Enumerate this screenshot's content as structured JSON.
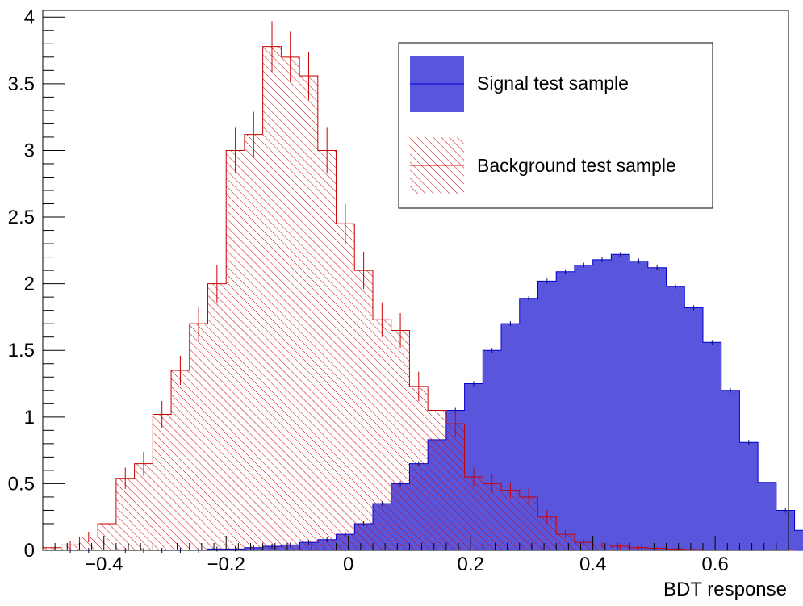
{
  "chart_data": {
    "type": "histogram",
    "title": "",
    "xlabel": "BDT response",
    "ylabel": "",
    "xlim": [
      -0.5,
      0.72
    ],
    "ylim": [
      0,
      4.05
    ],
    "bin_width": 0.03,
    "x_ticks": [
      -0.4,
      -0.2,
      0,
      0.2,
      0.4,
      0.6
    ],
    "x_tick_labels": [
      "−0.4",
      "−0.2",
      "0",
      "0.2",
      "0.4",
      "0.6"
    ],
    "y_ticks": [
      0,
      0.5,
      1,
      1.5,
      2,
      2.5,
      3,
      3.5,
      4
    ],
    "y_tick_labels": [
      "0",
      "0.5",
      "1",
      "1.5",
      "2",
      "2.5",
      "3",
      "3.5",
      "4"
    ],
    "legend_position": "top-right",
    "series": [
      {
        "name": "Signal test sample",
        "style": "filled",
        "color": "#5a55dd",
        "line_color": "#0000cc",
        "bin_edges_start": -0.5,
        "values": [
          0,
          0,
          0,
          0,
          0,
          0,
          0,
          0,
          0,
          0.01,
          0.01,
          0.02,
          0.03,
          0.04,
          0.06,
          0.08,
          0.12,
          0.2,
          0.35,
          0.5,
          0.65,
          0.83,
          1.05,
          1.25,
          1.5,
          1.7,
          1.89,
          2.02,
          2.09,
          2.14,
          2.18,
          2.22,
          2.17,
          2.12,
          1.98,
          1.82,
          1.56,
          1.2,
          0.81,
          0.51,
          0.3,
          0.15,
          0.08,
          0.03,
          0.01,
          0.005,
          0,
          0,
          0,
          0,
          0
        ]
      },
      {
        "name": "Background test sample",
        "style": "hatched",
        "color": "#cc0000",
        "bin_edges_start": -0.5,
        "values": [
          0.02,
          0.04,
          0.1,
          0.2,
          0.54,
          0.65,
          1.02,
          1.35,
          1.7,
          2.0,
          3.0,
          3.12,
          3.78,
          3.7,
          3.56,
          3.0,
          2.45,
          2.1,
          1.73,
          1.65,
          1.23,
          1.05,
          0.95,
          0.55,
          0.5,
          0.45,
          0.4,
          0.25,
          0.12,
          0.06,
          0.04,
          0.03,
          0.02,
          0.015,
          0.01,
          0.005,
          0,
          0,
          0,
          0,
          0
        ],
        "errors": [
          0.02,
          0.03,
          0.04,
          0.05,
          0.08,
          0.09,
          0.1,
          0.11,
          0.13,
          0.14,
          0.17,
          0.17,
          0.19,
          0.19,
          0.18,
          0.17,
          0.15,
          0.14,
          0.13,
          0.13,
          0.11,
          0.1,
          0.1,
          0.07,
          0.07,
          0.06,
          0.06,
          0.05,
          0.03,
          0.02,
          0.02,
          0.02,
          0.01,
          0.01,
          0.01,
          0.01,
          0,
          0,
          0,
          0,
          0
        ]
      }
    ]
  }
}
